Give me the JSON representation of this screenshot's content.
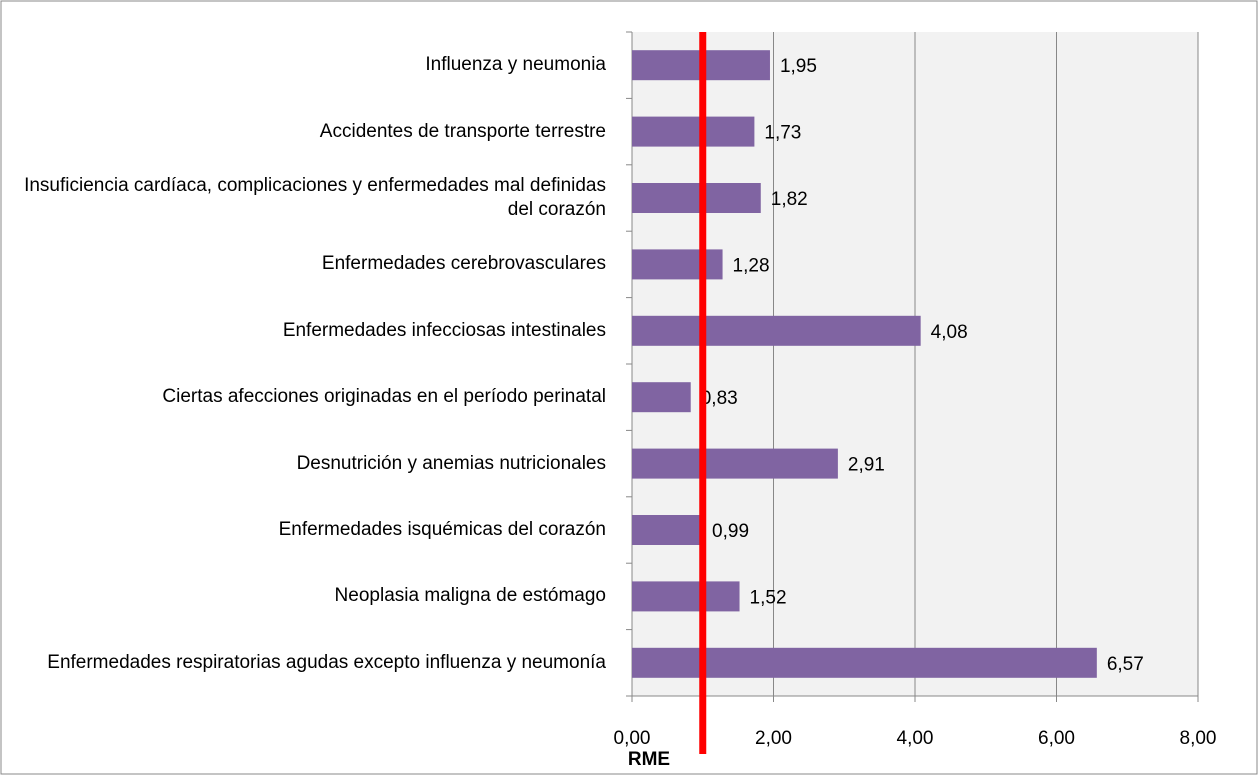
{
  "chart_data": {
    "type": "bar",
    "orientation": "horizontal",
    "categories": [
      "Influenza y neumonia",
      "Accidentes de transporte terrestre",
      "Insuficiencia cardíaca, complicaciones y enfermedades mal definidas del corazón",
      "Enfermedades cerebrovasculares",
      "Enfermedades infecciosas intestinales",
      "Ciertas afecciones originadas en el período perinatal",
      "Desnutrición y anemias nutricionales",
      "Enfermedades isquémicas del corazón",
      "Neoplasia maligna de estómago",
      "Enfermedades respiratorias agudas excepto influenza y neumonía"
    ],
    "values": [
      1.95,
      1.73,
      1.82,
      1.28,
      4.08,
      0.83,
      2.91,
      0.99,
      1.52,
      6.57
    ],
    "value_labels": [
      "1,95",
      "1,73",
      "1,82",
      "1,28",
      "4,08",
      "0,83",
      "2,91",
      "0,99",
      "1,52",
      "6,57"
    ],
    "color": "#8064a2",
    "xlabel": "RME",
    "xlim": [
      0,
      8
    ],
    "xticks": [
      {
        "value": 0,
        "label": "0,00"
      },
      {
        "value": 2,
        "label": "2,00"
      },
      {
        "value": 4,
        "label": "4,00"
      },
      {
        "value": 6,
        "label": "6,00"
      },
      {
        "value": 8,
        "label": "8,00"
      }
    ],
    "grid": true,
    "reference_line": {
      "value": 1,
      "color": "#ff0000"
    }
  }
}
